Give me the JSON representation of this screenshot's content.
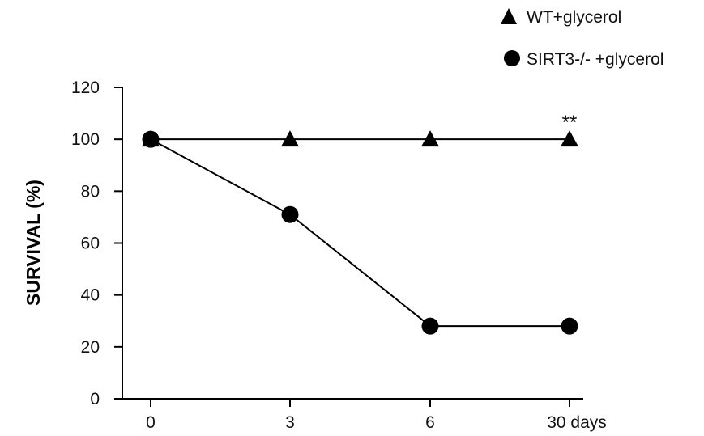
{
  "chart_data": {
    "type": "line",
    "categories": [
      "0",
      "3",
      "6",
      "30 days"
    ],
    "ylabel": "SURVIVAL (%)",
    "ylim": [
      0,
      120
    ],
    "yticks": [
      "0",
      "20",
      "40",
      "60",
      "80",
      "100",
      "120"
    ],
    "grid": false,
    "legend_position": "top-right",
    "series": [
      {
        "name": "WT+glycerol",
        "marker": "triangle",
        "color": "#000000",
        "values": [
          100,
          100,
          100,
          100
        ]
      },
      {
        "name": "SIRT3-/- +glycerol",
        "marker": "circle",
        "color": "#000000",
        "values": [
          100,
          71,
          28,
          28
        ]
      }
    ],
    "annotations": [
      {
        "text": "**",
        "category": "30 days",
        "y": 100
      }
    ]
  }
}
